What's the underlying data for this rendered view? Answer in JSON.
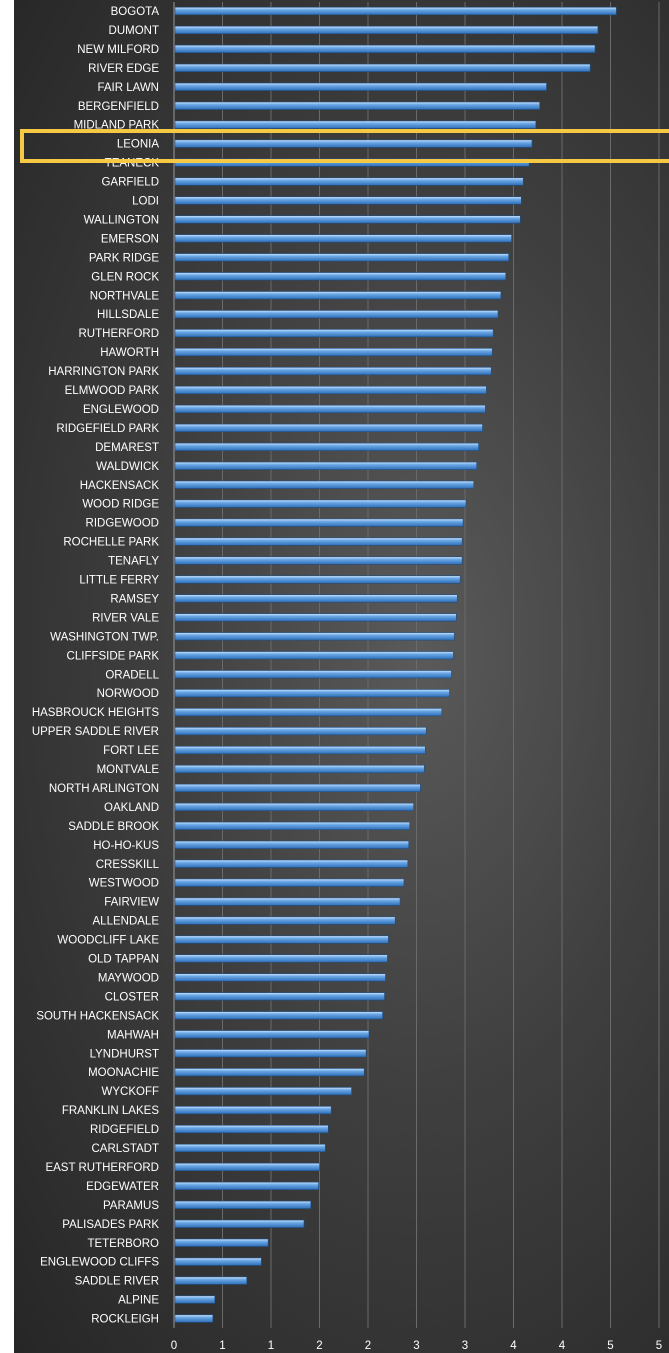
{
  "colors": {
    "bar": "#4a8fd9",
    "bar_highlight": "#a9d0f7",
    "highlight_box": "#f6c945",
    "text": "#ffffff",
    "gridline": "#6a6a6a"
  },
  "chart_data": {
    "type": "bar",
    "orientation": "horizontal",
    "title": "",
    "xlabel": "",
    "ylabel": "",
    "xlim": [
      0,
      5
    ],
    "grid": true,
    "legend": "none",
    "x_ticks": [
      0,
      0.5,
      1,
      1.5,
      2,
      2.5,
      3,
      3.5,
      4,
      4.5,
      5
    ],
    "x_tick_labels": [
      "0",
      "1",
      "1",
      "2",
      "2",
      "3",
      "3",
      "4",
      "4",
      "5",
      "5"
    ],
    "highlighted_category": "LEONIA",
    "categories": [
      "BOGOTA",
      "DUMONT",
      "NEW MILFORD",
      "RIVER EDGE",
      "FAIR LAWN",
      "BERGENFIELD",
      "MIDLAND PARK",
      "LEONIA",
      "TEANECK",
      "GARFIELD",
      "LODI",
      "WALLINGTON",
      "EMERSON",
      "PARK RIDGE",
      "GLEN ROCK",
      "NORTHVALE",
      "HILLSDALE",
      "RUTHERFORD",
      "HAWORTH",
      "HARRINGTON PARK",
      "ELMWOOD PARK",
      "ENGLEWOOD",
      "RIDGEFIELD PARK",
      "DEMAREST",
      "WALDWICK",
      "HACKENSACK",
      "WOOD RIDGE",
      "RIDGEWOOD",
      "ROCHELLE PARK",
      "TENAFLY",
      "LITTLE FERRY",
      "RAMSEY",
      "RIVER VALE",
      "WASHINGTON TWP.",
      "CLIFFSIDE PARK",
      "ORADELL",
      "NORWOOD",
      "HASBROUCK HEIGHTS",
      "UPPER SADDLE RIVER",
      "FORT LEE",
      "MONTVALE",
      "NORTH ARLINGTON",
      "OAKLAND",
      "SADDLE BROOK",
      "HO-HO-KUS",
      "CRESSKILL",
      "WESTWOOD",
      "FAIRVIEW",
      "ALLENDALE",
      "WOODCLIFF LAKE",
      "OLD TAPPAN",
      "MAYWOOD",
      "CLOSTER",
      "SOUTH HACKENSACK",
      "MAHWAH",
      "LYNDHURST",
      "MOONACHIE",
      "WYCKOFF",
      "FRANKLIN LAKES",
      "RIDGEFIELD",
      "CARLSTADT",
      "EAST RUTHERFORD",
      "EDGEWATER",
      "PARAMUS",
      "PALISADES PARK",
      "TETERBORO",
      "ENGLEWOOD CLIFFS",
      "SADDLE RIVER",
      "ALPINE",
      "ROCKLEIGH"
    ],
    "values": [
      4.55,
      4.36,
      4.33,
      4.28,
      3.83,
      3.76,
      3.72,
      3.68,
      3.65,
      3.59,
      3.57,
      3.56,
      3.47,
      3.44,
      3.41,
      3.36,
      3.33,
      3.28,
      3.27,
      3.26,
      3.21,
      3.2,
      3.17,
      3.13,
      3.11,
      3.08,
      3.0,
      2.97,
      2.96,
      2.96,
      2.94,
      2.91,
      2.9,
      2.88,
      2.87,
      2.85,
      2.83,
      2.75,
      2.59,
      2.58,
      2.57,
      2.53,
      2.46,
      2.42,
      2.41,
      2.4,
      2.36,
      2.32,
      2.27,
      2.2,
      2.19,
      2.17,
      2.16,
      2.14,
      2.0,
      1.97,
      1.95,
      1.82,
      1.61,
      1.58,
      1.55,
      1.49,
      1.48,
      1.4,
      1.33,
      0.96,
      0.89,
      0.74,
      0.41,
      0.39
    ]
  }
}
